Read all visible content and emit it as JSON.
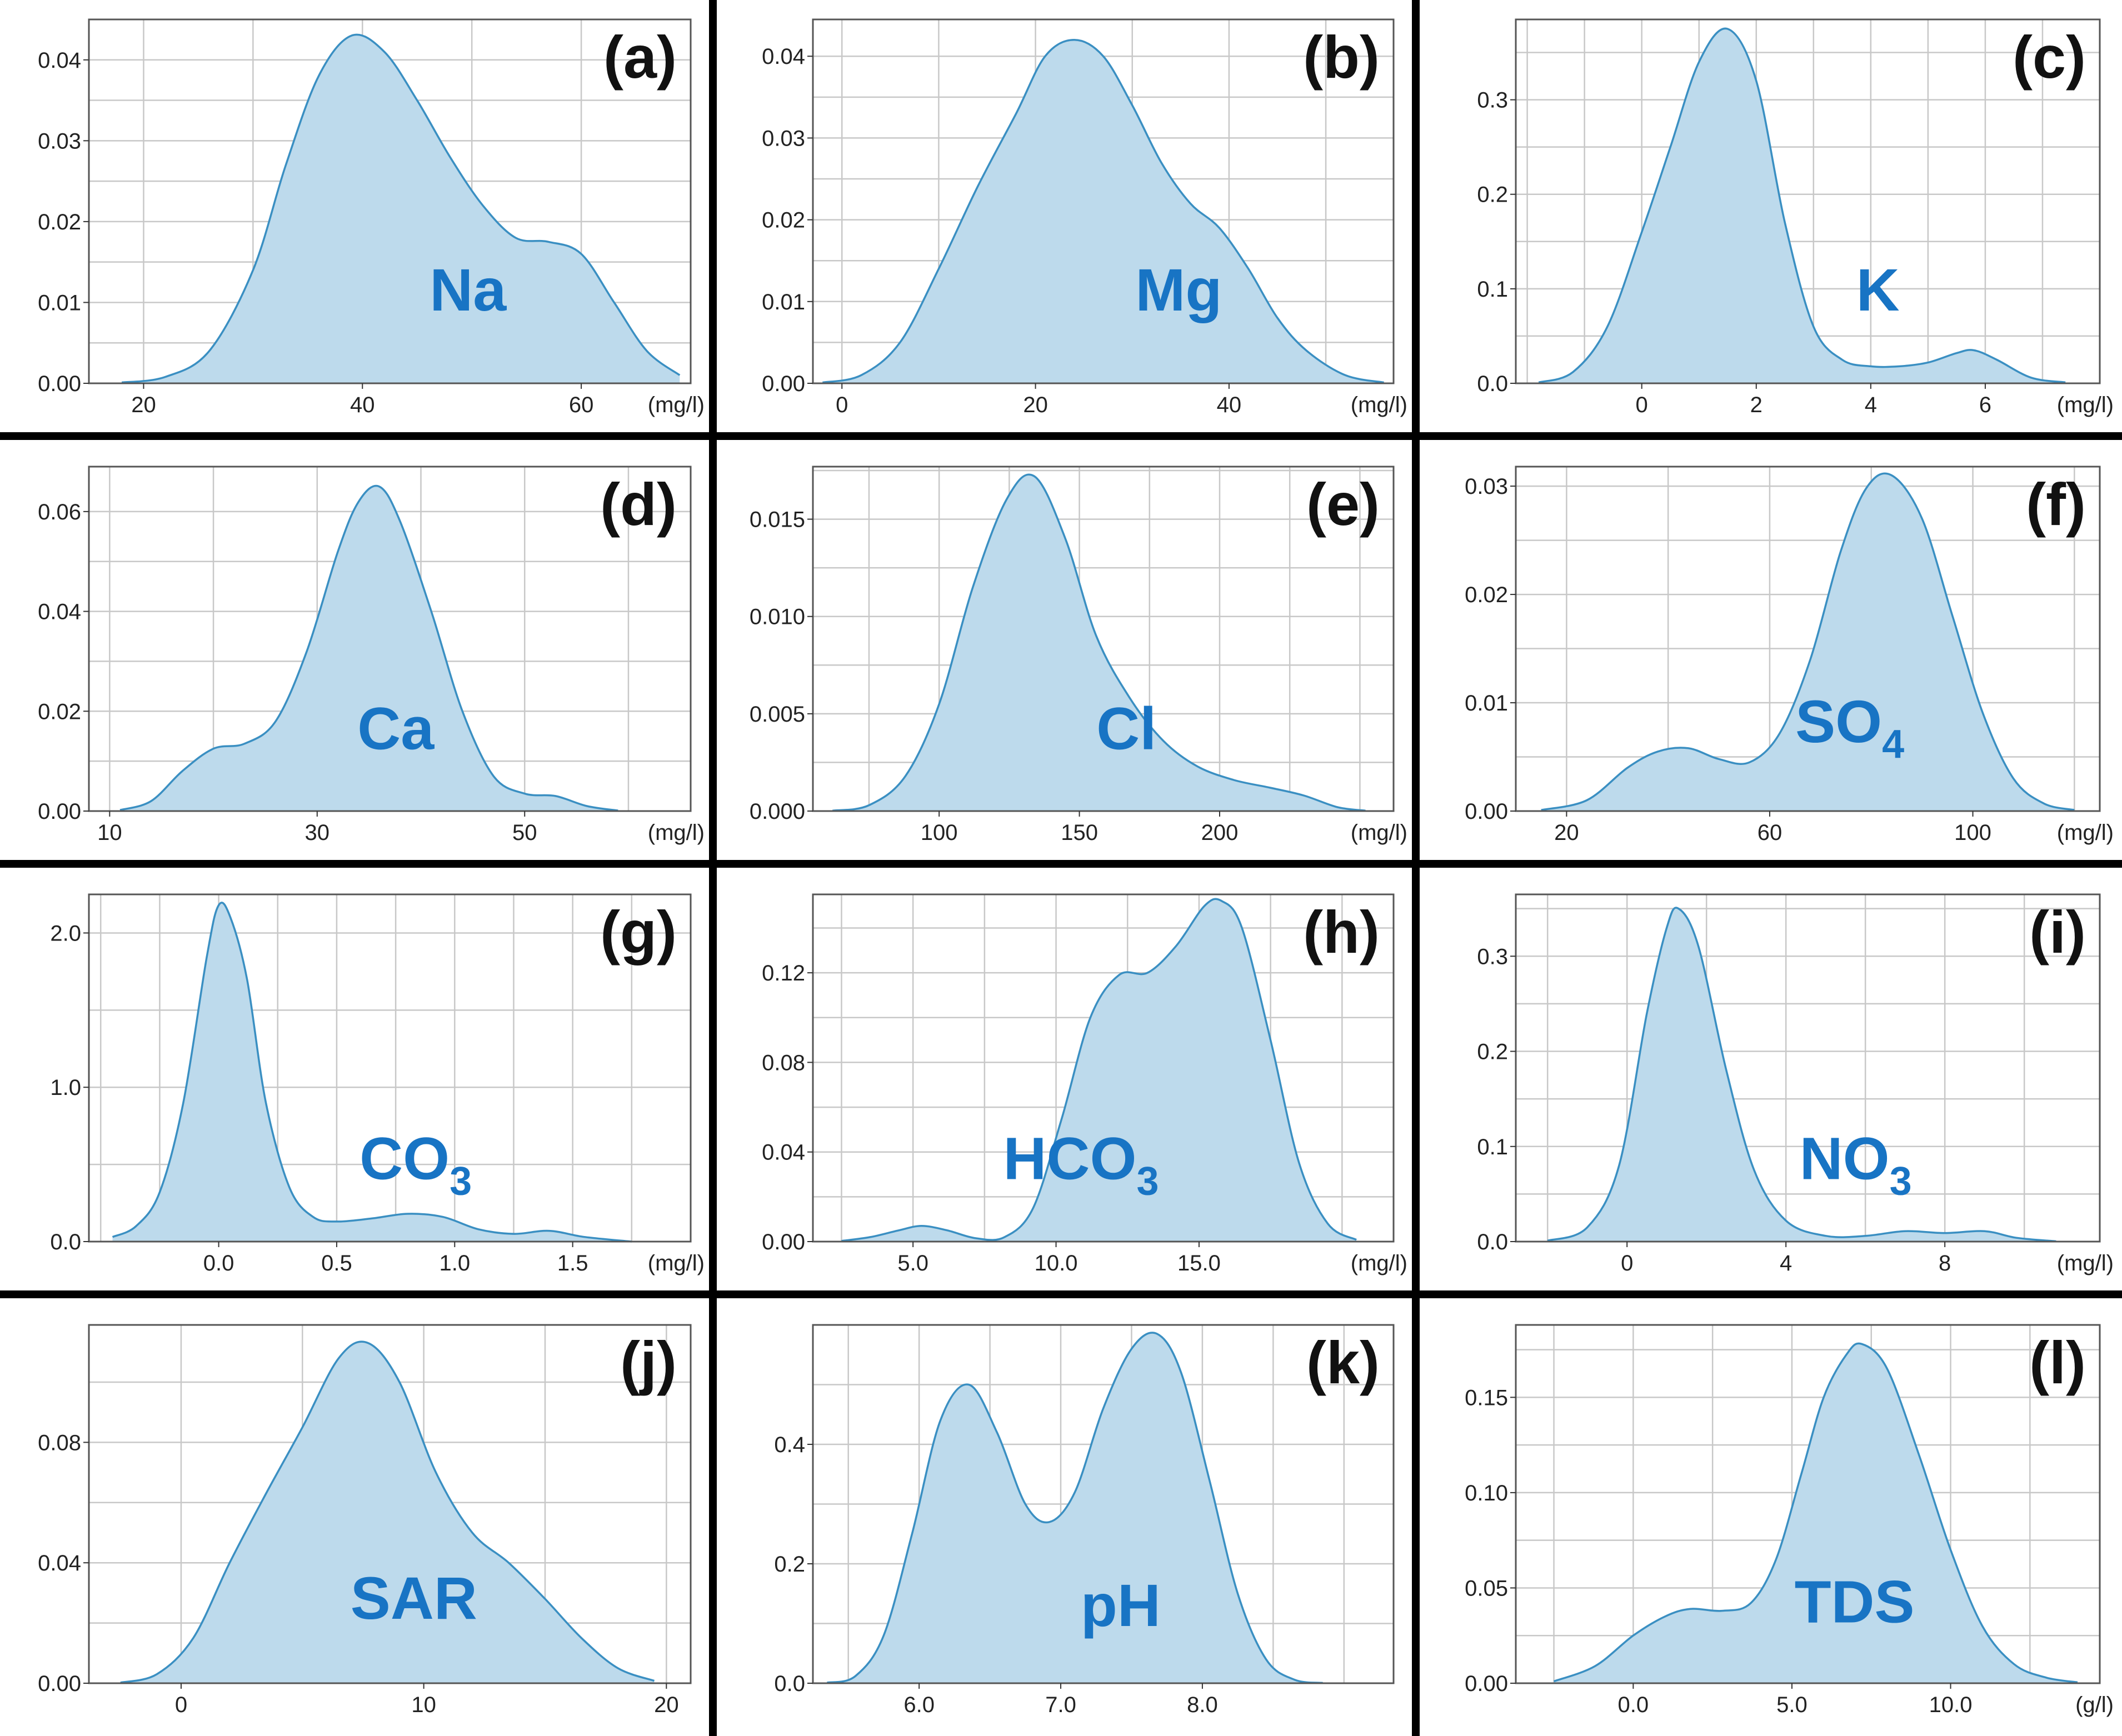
{
  "colors": {
    "fill": "#bddaec",
    "line": "#3a8fc2",
    "label_text": "#1874c4",
    "divider": "#000000",
    "grid": "#c8c8c8"
  },
  "chart_data": [
    {
      "type": "area",
      "panel": "(a)",
      "variable": "Na",
      "subscript": "",
      "unit": "(mg/l)",
      "xlim": [
        15,
        70
      ],
      "ylim": [
        0,
        0.045
      ],
      "xticks": [
        20,
        40,
        60
      ],
      "xtick_labels": [
        "20",
        "40",
        "60"
      ],
      "yticks": [
        0,
        0.01,
        0.02,
        0.03,
        0.04
      ],
      "ytick_labels": [
        "0.00",
        "0.01",
        "0.02",
        "0.03",
        "0.04"
      ],
      "x": [
        18,
        22,
        26,
        30,
        33,
        36,
        39,
        42,
        45,
        48,
        51,
        54,
        57,
        60,
        63,
        66,
        69
      ],
      "y": [
        0.0001,
        0.0008,
        0.004,
        0.014,
        0.027,
        0.038,
        0.043,
        0.041,
        0.035,
        0.028,
        0.022,
        0.018,
        0.0175,
        0.016,
        0.01,
        0.004,
        0.001
      ],
      "xlabel": "(mg/l)",
      "ylabel": ""
    },
    {
      "type": "area",
      "panel": "(b)",
      "variable": "Mg",
      "subscript": "",
      "unit": "(mg/l)",
      "xlim": [
        -3,
        57
      ],
      "ylim": [
        0,
        0.0445
      ],
      "xticks": [
        0,
        20,
        40
      ],
      "xtick_labels": [
        "0",
        "20",
        "40"
      ],
      "yticks": [
        0,
        0.01,
        0.02,
        0.03,
        0.04
      ],
      "ytick_labels": [
        "0.00",
        "0.01",
        "0.02",
        "0.03",
        "0.04"
      ],
      "x": [
        -2,
        2,
        6,
        10,
        14,
        18,
        21,
        24,
        27,
        30,
        33,
        36,
        39,
        42,
        45,
        48,
        52,
        56
      ],
      "y": [
        0.0001,
        0.001,
        0.005,
        0.014,
        0.024,
        0.033,
        0.04,
        0.042,
        0.04,
        0.034,
        0.027,
        0.022,
        0.019,
        0.014,
        0.008,
        0.004,
        0.001,
        0.0001
      ],
      "xlabel": "(mg/l)",
      "ylabel": ""
    },
    {
      "type": "area",
      "panel": "(c)",
      "variable": "K",
      "subscript": "",
      "unit": "(mg/l)",
      "xlim": [
        -2.2,
        8.0
      ],
      "ylim": [
        0,
        0.385
      ],
      "xticks": [
        0,
        2,
        4,
        6
      ],
      "xtick_labels": [
        "0",
        "2",
        "4",
        "6"
      ],
      "yticks": [
        0,
        0.1,
        0.2,
        0.3
      ],
      "ytick_labels": [
        "0.0",
        "0.1",
        "0.2",
        "0.3"
      ],
      "x": [
        -1.8,
        -1.2,
        -0.6,
        0,
        0.5,
        1.0,
        1.5,
        2.0,
        2.5,
        3.0,
        3.5,
        4.0,
        4.5,
        5.0,
        5.5,
        5.8,
        6.2,
        6.8,
        7.4
      ],
      "y": [
        0.001,
        0.012,
        0.06,
        0.16,
        0.25,
        0.34,
        0.375,
        0.32,
        0.17,
        0.06,
        0.025,
        0.018,
        0.018,
        0.022,
        0.032,
        0.035,
        0.025,
        0.006,
        0.001
      ],
      "xlabel": "(mg/l)",
      "ylabel": ""
    },
    {
      "type": "area",
      "panel": "(d)",
      "variable": "Ca",
      "subscript": "",
      "unit": "(mg/l)",
      "xlim": [
        8,
        66
      ],
      "ylim": [
        0,
        0.069
      ],
      "xticks": [
        10,
        30,
        50
      ],
      "xtick_labels": [
        "10",
        "30",
        "50"
      ],
      "yticks": [
        0,
        0.02,
        0.04,
        0.06
      ],
      "ytick_labels": [
        "0.00",
        "0.02",
        "0.04",
        "0.06"
      ],
      "x": [
        11,
        14,
        17,
        20,
        23,
        26,
        29,
        32,
        34,
        36,
        38,
        41,
        44,
        47,
        50,
        53,
        56,
        59
      ],
      "y": [
        0.0002,
        0.002,
        0.008,
        0.0125,
        0.0135,
        0.018,
        0.032,
        0.052,
        0.062,
        0.065,
        0.058,
        0.04,
        0.02,
        0.007,
        0.0035,
        0.003,
        0.001,
        0.0001
      ],
      "xlabel": "(mg/l)",
      "ylabel": ""
    },
    {
      "type": "area",
      "panel": "(e)",
      "variable": "Cl",
      "subscript": "",
      "unit": "(mg/l)",
      "xlim": [
        55,
        262
      ],
      "ylim": [
        0,
        0.0177
      ],
      "xticks": [
        100,
        150,
        200
      ],
      "xtick_labels": [
        "100",
        "150",
        "200"
      ],
      "yticks": [
        0,
        0.005,
        0.01,
        0.015
      ],
      "ytick_labels": [
        "0.000",
        "0.005",
        "0.010",
        "0.015"
      ],
      "x": [
        62,
        75,
        88,
        100,
        112,
        124,
        134,
        145,
        156,
        168,
        180,
        192,
        205,
        218,
        230,
        242,
        252
      ],
      "y": [
        2e-05,
        0.0003,
        0.0018,
        0.0055,
        0.0115,
        0.016,
        0.0172,
        0.014,
        0.009,
        0.0058,
        0.0036,
        0.0023,
        0.0016,
        0.0012,
        0.0008,
        0.0002,
        2e-05
      ],
      "xlabel": "(mg/l)",
      "ylabel": ""
    },
    {
      "type": "area",
      "panel": "(f)",
      "variable": "SO",
      "subscript": "4",
      "unit": "(mg/l)",
      "xlim": [
        10,
        125
      ],
      "ylim": [
        0,
        0.0318
      ],
      "xticks": [
        20,
        60,
        100
      ],
      "xtick_labels": [
        "20",
        "60",
        "100"
      ],
      "yticks": [
        0,
        0.01,
        0.02,
        0.03
      ],
      "ytick_labels": [
        "0.00",
        "0.01",
        "0.02",
        "0.03"
      ],
      "x": [
        15,
        24,
        32,
        38,
        44,
        50,
        56,
        62,
        68,
        74,
        79,
        84,
        90,
        96,
        102,
        108,
        114,
        120
      ],
      "y": [
        0.0001,
        0.001,
        0.004,
        0.0055,
        0.0058,
        0.0048,
        0.0045,
        0.0072,
        0.014,
        0.024,
        0.0298,
        0.031,
        0.027,
        0.018,
        0.009,
        0.003,
        0.0007,
        0.0001
      ],
      "xlabel": "(mg/l)",
      "ylabel": ""
    },
    {
      "type": "area",
      "panel": "(g)",
      "variable": "CO",
      "subscript": "3",
      "unit": "(mg/l)",
      "xlim": [
        -0.55,
        2.0
      ],
      "ylim": [
        0,
        2.25
      ],
      "xticks": [
        0,
        0.5,
        1.0,
        1.5
      ],
      "xtick_labels": [
        "0.0",
        "0.5",
        "1.0",
        "1.5"
      ],
      "yticks": [
        0,
        1.0,
        2.0
      ],
      "ytick_labels": [
        "0.0",
        "1.0",
        "2.0"
      ],
      "x": [
        -0.45,
        -0.35,
        -0.25,
        -0.15,
        -0.05,
        0.0,
        0.05,
        0.12,
        0.2,
        0.3,
        0.4,
        0.5,
        0.65,
        0.8,
        0.95,
        1.1,
        1.25,
        1.4,
        1.55,
        1.75
      ],
      "y": [
        0.03,
        0.1,
        0.32,
        0.9,
        1.85,
        2.18,
        2.1,
        1.7,
        0.9,
        0.35,
        0.16,
        0.13,
        0.15,
        0.18,
        0.16,
        0.08,
        0.05,
        0.07,
        0.03,
        0.0
      ],
      "xlabel": "(mg/l)",
      "ylabel": ""
    },
    {
      "type": "area",
      "panel": "(h)",
      "variable": "HCO",
      "subscript": "3",
      "unit": "(mg/l)",
      "xlim": [
        1.5,
        21.8
      ],
      "ylim": [
        0,
        0.155
      ],
      "xticks": [
        5,
        10,
        15
      ],
      "xtick_labels": [
        "5.0",
        "10.0",
        "15.0"
      ],
      "yticks": [
        0,
        0.04,
        0.08,
        0.12
      ],
      "ytick_labels": [
        "0.00",
        "0.04",
        "0.08",
        "0.12"
      ],
      "x": [
        2.5,
        3.5,
        4.5,
        5.3,
        6.2,
        7.2,
        8.2,
        9.2,
        10.2,
        11.2,
        12.2,
        13.2,
        14.2,
        15.2,
        15.8,
        16.5,
        17.5,
        18.5,
        19.5,
        20.5
      ],
      "y": [
        0.0003,
        0.002,
        0.005,
        0.007,
        0.005,
        0.0015,
        0.002,
        0.015,
        0.055,
        0.1,
        0.119,
        0.12,
        0.132,
        0.15,
        0.152,
        0.14,
        0.09,
        0.035,
        0.008,
        0.0008
      ],
      "xlabel": "(mg/l)",
      "ylabel": ""
    },
    {
      "type": "area",
      "panel": "(i)",
      "variable": "NO",
      "subscript": "3",
      "unit": "(mg/l)",
      "xlim": [
        -2.8,
        11.9
      ],
      "ylim": [
        0,
        0.365
      ],
      "xticks": [
        0,
        4,
        8
      ],
      "xtick_labels": [
        "0",
        "4",
        "8"
      ],
      "yticks": [
        0,
        0.1,
        0.2,
        0.3
      ],
      "ytick_labels": [
        "0.0",
        "0.1",
        "0.2",
        "0.3"
      ],
      "x": [
        -2.0,
        -1.0,
        -0.2,
        0.5,
        1.0,
        1.3,
        1.8,
        2.5,
        3.2,
        4.0,
        5.0,
        6.0,
        7.0,
        8.0,
        9.0,
        9.8,
        10.8
      ],
      "y": [
        0.001,
        0.015,
        0.08,
        0.24,
        0.33,
        0.35,
        0.31,
        0.18,
        0.075,
        0.022,
        0.006,
        0.006,
        0.011,
        0.009,
        0.011,
        0.004,
        0.0003
      ],
      "xlabel": "(mg/l)",
      "ylabel": ""
    },
    {
      "type": "area",
      "panel": "(j)",
      "variable": "SAR",
      "subscript": "",
      "unit": "",
      "xlim": [
        -3.8,
        21.0
      ],
      "ylim": [
        0,
        0.119
      ],
      "xticks": [
        0,
        10,
        20
      ],
      "xtick_labels": [
        "0",
        "10",
        "20"
      ],
      "yticks": [
        0,
        0.04,
        0.08
      ],
      "ytick_labels": [
        "0.00",
        "0.04",
        "0.08"
      ],
      "x": [
        -2.5,
        -1.0,
        0.5,
        2.0,
        3.5,
        5.0,
        6.5,
        7.7,
        9.0,
        10.5,
        12.0,
        13.5,
        15.0,
        16.5,
        18.0,
        19.5
      ],
      "y": [
        0.0002,
        0.003,
        0.015,
        0.04,
        0.063,
        0.085,
        0.108,
        0.113,
        0.1,
        0.07,
        0.05,
        0.04,
        0.028,
        0.015,
        0.005,
        0.0008
      ],
      "xlabel": "",
      "ylabel": ""
    },
    {
      "type": "area",
      "panel": "(k)",
      "variable": "pH",
      "subscript": "",
      "unit": "",
      "xlim": [
        5.25,
        9.35
      ],
      "ylim": [
        0,
        0.6
      ],
      "xticks": [
        6.0,
        7.0,
        8.0
      ],
      "xtick_labels": [
        "6.0",
        "7.0",
        "8.0"
      ],
      "yticks": [
        0,
        0.2,
        0.4
      ],
      "ytick_labels": [
        "0.0",
        "0.2",
        "0.4"
      ],
      "x": [
        5.35,
        5.55,
        5.75,
        5.95,
        6.15,
        6.35,
        6.55,
        6.75,
        6.92,
        7.1,
        7.3,
        7.5,
        7.68,
        7.85,
        8.05,
        8.25,
        8.45,
        8.65,
        8.85
      ],
      "y": [
        0.001,
        0.012,
        0.08,
        0.25,
        0.44,
        0.5,
        0.42,
        0.3,
        0.27,
        0.32,
        0.46,
        0.56,
        0.585,
        0.52,
        0.34,
        0.15,
        0.04,
        0.006,
        0.0005
      ],
      "xlabel": "",
      "ylabel": ""
    },
    {
      "type": "area",
      "panel": "(l)",
      "variable": "TDS",
      "subscript": "",
      "unit": "(g/l)",
      "xlim": [
        -3.7,
        14.7
      ],
      "ylim": [
        0,
        0.188
      ],
      "xticks": [
        0,
        5,
        10
      ],
      "xtick_labels": [
        "0.0",
        "5.0",
        "10.0"
      ],
      "yticks": [
        0,
        0.05,
        0.1,
        0.15
      ],
      "ytick_labels": [
        "0.00",
        "0.05",
        "0.10",
        "0.15"
      ],
      "x": [
        -2.5,
        -1.2,
        0.0,
        1.0,
        1.8,
        2.8,
        3.7,
        4.5,
        5.3,
        6.0,
        6.7,
        7.2,
        8.0,
        9.0,
        10.0,
        11.0,
        12.0,
        13.0,
        14.0
      ],
      "y": [
        0.001,
        0.009,
        0.025,
        0.035,
        0.039,
        0.038,
        0.042,
        0.065,
        0.11,
        0.15,
        0.172,
        0.178,
        0.165,
        0.12,
        0.07,
        0.03,
        0.01,
        0.003,
        0.0005
      ],
      "xlabel": "(g/l)",
      "ylabel": ""
    }
  ]
}
